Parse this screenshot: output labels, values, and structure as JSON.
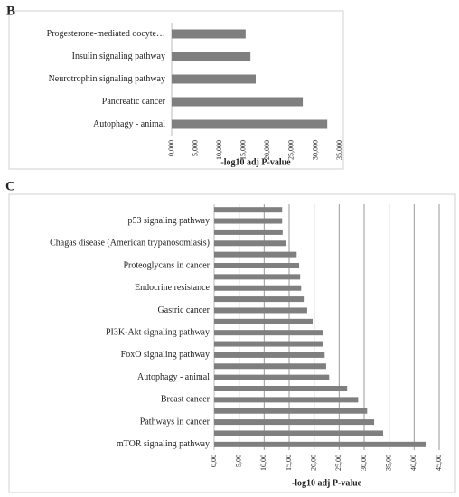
{
  "chart_data": [
    {
      "type": "bar",
      "orientation": "horizontal",
      "panel_label": "B",
      "categories": [
        "Autophagy - animal",
        "Pancreatic cancer",
        "Neurotrophin signaling pathway",
        "Insulin signaling pathway",
        "Progesterone-mediated oocyte…"
      ],
      "values": [
        32.4,
        27.3,
        17.5,
        16.4,
        15.4
      ],
      "color": "#7f7f7f",
      "xlabel": "-log10 adj P-value",
      "xlim": [
        0,
        35
      ],
      "xticks": [
        {
          "value": 0,
          "label": "0,000"
        },
        {
          "value": 5,
          "label": "5,000"
        },
        {
          "value": 10,
          "label": "10,000"
        },
        {
          "value": 15,
          "label": "15,000"
        },
        {
          "value": 20,
          "label": "20,000"
        },
        {
          "value": 25,
          "label": "25,000"
        },
        {
          "value": 30,
          "label": "30,000"
        },
        {
          "value": 35,
          "label": "35,000"
        }
      ],
      "grid": false
    },
    {
      "type": "bar",
      "orientation": "horizontal",
      "panel_label": "C",
      "categories": [
        "mTOR signaling pathway",
        null,
        "Pathways in cancer",
        null,
        "Breast cancer",
        null,
        "Autophagy - animal",
        null,
        "FoxO signaling pathway",
        null,
        "PI3K-Akt signaling pathway",
        null,
        "Gastric cancer",
        null,
        "Endocrine resistance",
        null,
        "Proteoglycans in cancer",
        null,
        "Chagas disease (American trypanosomiasis)",
        null,
        "p53 signaling pathway",
        null
      ],
      "values": [
        42.3,
        33.8,
        32.0,
        30.6,
        28.8,
        26.6,
        23.0,
        22.4,
        22.1,
        21.7,
        21.7,
        19.7,
        18.6,
        18.1,
        17.4,
        17.2,
        17.0,
        16.5,
        14.3,
        13.7,
        13.6,
        13.6
      ],
      "color": "#7f7f7f",
      "xlabel": "-log10 adj P-value",
      "xlim": [
        0,
        45
      ],
      "xticks": [
        {
          "value": 0,
          "label": "0,00"
        },
        {
          "value": 5,
          "label": "5,00"
        },
        {
          "value": 10,
          "label": "10,00"
        },
        {
          "value": 15,
          "label": "15,00"
        },
        {
          "value": 20,
          "label": "20,00"
        },
        {
          "value": 25,
          "label": "25,00"
        },
        {
          "value": 30,
          "label": "30,00"
        },
        {
          "value": 35,
          "label": "35,00"
        },
        {
          "value": 40,
          "label": "40,00"
        },
        {
          "value": 45,
          "label": "45,00"
        }
      ],
      "grid": true
    }
  ]
}
